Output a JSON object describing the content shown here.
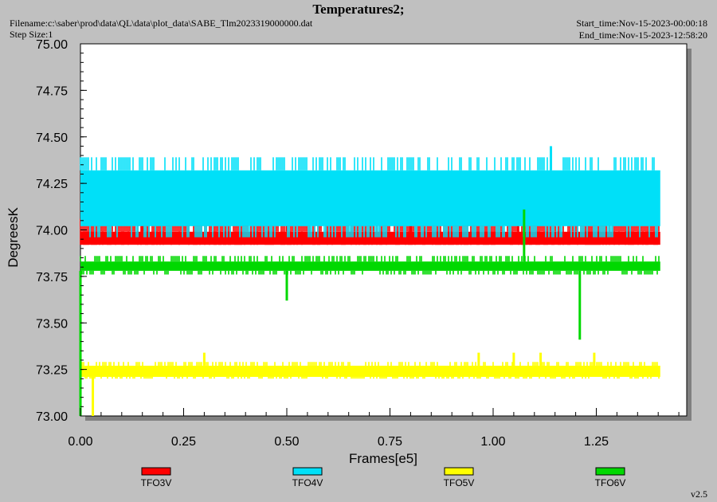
{
  "header": {
    "title": "Temperatures2;",
    "filename": "Filename:c:\\saber\\prod\\data\\QL\\data\\plot_data\\SABE_Tlm2023319000000.dat",
    "step_size": "Step Size:1",
    "start_time": "Start_time:Nov-15-2023-00:00:18",
    "end_time": "End_time:Nov-15-2023-12:58:20",
    "version": "v2.5"
  },
  "chart_data": {
    "type": "line",
    "title": "Temperatures2;",
    "xlabel": "Frames[e5]",
    "ylabel": "DegreesK",
    "xlim": [
      0,
      1.5
    ],
    "ylim": [
      73.0,
      75.0
    ],
    "x_ticks": [
      "0.00",
      "0.25",
      "0.50",
      "0.75",
      "1.00",
      "1.25"
    ],
    "y_ticks": [
      "73.00",
      "73.25",
      "73.50",
      "73.75",
      "74.00",
      "74.25",
      "74.50",
      "74.75",
      "75.00"
    ],
    "grid": false,
    "legend_position": "bottom",
    "series": [
      {
        "name": "TFO3V",
        "color": "#ff0000",
        "x_range": [
          0,
          1.405
        ],
        "band": [
          73.92,
          73.99
        ],
        "spike_values": [
          74.06,
          74.09
        ],
        "spikes": [
          [
            0.15,
            74.06
          ],
          [
            0.5,
            74.06
          ],
          [
            0.8,
            74.06
          ],
          [
            1.06,
            74.09
          ]
        ]
      },
      {
        "name": "TFO4V",
        "color": "#00e0f8",
        "x_range": [
          0,
          1.405
        ],
        "band": [
          74.02,
          74.32
        ],
        "spike_values": [
          73.96,
          74.39
        ],
        "spikes": [
          [
            1.14,
            74.45
          ]
        ]
      },
      {
        "name": "TFO5V",
        "color": "#ffff00",
        "x_range": [
          0,
          1.405
        ],
        "band": [
          73.21,
          73.27
        ],
        "spike_values": [
          73.2,
          73.29
        ],
        "spikes": [
          [
            0.03,
            73.0
          ],
          [
            0.3,
            73.34
          ],
          [
            0.965,
            73.34
          ],
          [
            1.05,
            73.34
          ],
          [
            1.115,
            73.34
          ],
          [
            1.245,
            73.34
          ]
        ]
      },
      {
        "name": "TFO6V",
        "color": "#00d800",
        "x_range": [
          0,
          1.405
        ],
        "band": [
          73.78,
          73.83
        ],
        "spike_values": [
          73.76,
          73.86
        ],
        "spikes": [
          [
            0.5,
            73.62
          ],
          [
            1.075,
            74.11
          ],
          [
            1.21,
            73.41
          ],
          [
            0.0,
            73.0
          ]
        ]
      }
    ]
  }
}
